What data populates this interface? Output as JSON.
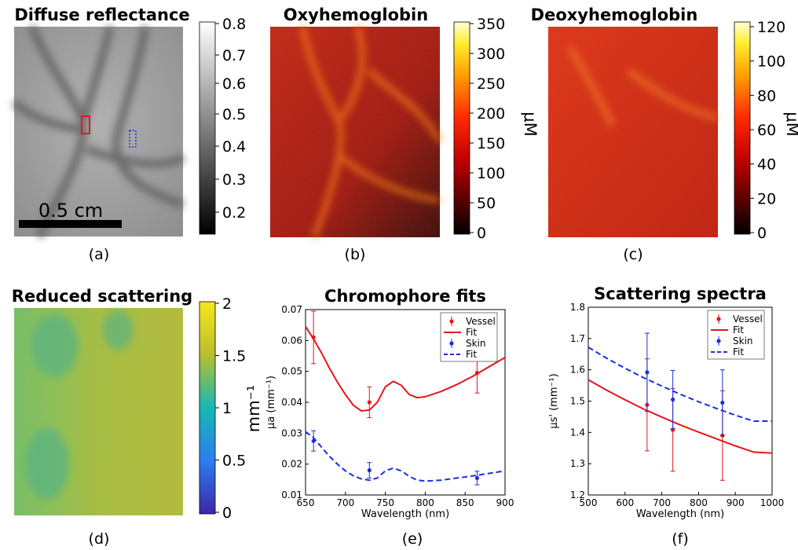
{
  "panels": {
    "a": {
      "title": "Diffuse reflectance",
      "caption": "(a)",
      "scalebar_label": "0.5 cm",
      "colorbar_ticks": [
        "0.8",
        "0.7",
        "0.6",
        "0.5",
        "0.4",
        "0.3",
        "0.2"
      ]
    },
    "b": {
      "title": "Oxyhemoglobin",
      "caption": "(b)",
      "unit": "μM",
      "colorbar_ticks": [
        "350",
        "300",
        "250",
        "200",
        "150",
        "100",
        "50",
        "0"
      ]
    },
    "c": {
      "title": "Deoxyhemoglobin",
      "caption": "(c)",
      "unit": "μM",
      "colorbar_ticks": [
        "120",
        "100",
        "80",
        "60",
        "40",
        "20",
        "0"
      ]
    },
    "d": {
      "title": "Reduced scattering",
      "caption": "(d)",
      "unit": "mm⁻¹",
      "colorbar_ticks": [
        "2",
        "1.5",
        "1",
        "0.5",
        "0"
      ]
    },
    "e": {
      "caption": "(e)"
    },
    "f": {
      "caption": "(f)"
    }
  },
  "chart_data": [
    {
      "type": "line",
      "title": "Chromophore fits",
      "xlabel": "Wavelength (nm)",
      "ylabel": "μa (mm⁻¹)",
      "xlim": [
        650,
        900
      ],
      "ylim": [
        0.01,
        0.07
      ],
      "x_ticks": [
        "650",
        "700",
        "750",
        "800",
        "850",
        "900"
      ],
      "y_ticks": [
        "0.01",
        "0.02",
        "0.03",
        "0.04",
        "0.05",
        "0.06",
        "0.07"
      ],
      "legend": [
        "Vessel",
        "Fit",
        "Skin",
        "Fit"
      ],
      "legend_position": "top-right",
      "series": [
        {
          "name": "Vessel",
          "kind": "errorbar",
          "color": "#e8141a",
          "x": [
            660,
            730,
            865
          ],
          "y": [
            0.061,
            0.04,
            0.0495
          ],
          "err": [
            0.0085,
            0.005,
            0.0065
          ]
        },
        {
          "name": "Fit",
          "kind": "line",
          "color": "#e8141a",
          "x": [
            650,
            660,
            670,
            680,
            690,
            700,
            710,
            720,
            730,
            740,
            750,
            760,
            770,
            780,
            790,
            800,
            820,
            840,
            860,
            880,
            900
          ],
          "y": [
            0.0645,
            0.0605,
            0.056,
            0.051,
            0.0465,
            0.0425,
            0.039,
            0.0372,
            0.0375,
            0.04,
            0.045,
            0.0468,
            0.0455,
            0.0425,
            0.0415,
            0.0418,
            0.0435,
            0.0458,
            0.0485,
            0.0515,
            0.0545
          ]
        },
        {
          "name": "Skin",
          "kind": "errorbar",
          "color": "#1a2ee0",
          "x": [
            660,
            730,
            865
          ],
          "y": [
            0.0275,
            0.018,
            0.0155
          ],
          "err": [
            0.0033,
            0.0025,
            0.0022
          ]
        },
        {
          "name": "Fit",
          "kind": "dashed",
          "color": "#1a2ee0",
          "x": [
            650,
            660,
            670,
            680,
            690,
            700,
            710,
            720,
            730,
            740,
            750,
            760,
            770,
            780,
            790,
            800,
            820,
            840,
            860,
            880,
            900
          ],
          "y": [
            0.0305,
            0.0285,
            0.0255,
            0.0225,
            0.02,
            0.0178,
            0.0162,
            0.0152,
            0.0148,
            0.0155,
            0.0178,
            0.0187,
            0.0178,
            0.016,
            0.0148,
            0.0145,
            0.0148,
            0.0155,
            0.0162,
            0.017,
            0.0178
          ]
        }
      ]
    },
    {
      "type": "line",
      "title": "Scattering spectra",
      "xlabel": "Wavelength (nm)",
      "ylabel": "μs' (mm⁻¹)",
      "xlim": [
        500,
        1000
      ],
      "ylim": [
        1.2,
        1.8
      ],
      "x_ticks": [
        "500",
        "600",
        "700",
        "800",
        "900",
        "1000"
      ],
      "y_ticks": [
        "1.2",
        "1.3",
        "1.4",
        "1.5",
        "1.6",
        "1.7",
        "1.8"
      ],
      "legend": [
        "Vessel",
        "Fit",
        "Skin",
        "Fit"
      ],
      "legend_position": "top-right",
      "series": [
        {
          "name": "Vessel",
          "kind": "errorbar",
          "color": "#e8141a",
          "x": [
            660,
            730,
            865
          ],
          "y": [
            1.488,
            1.408,
            1.39
          ],
          "err": [
            0.147,
            0.132,
            0.143
          ]
        },
        {
          "name": "Fit",
          "kind": "line",
          "color": "#e8141a",
          "x": [
            500,
            550,
            600,
            650,
            700,
            750,
            800,
            850,
            900,
            950,
            1000
          ],
          "y": [
            1.568,
            1.535,
            1.504,
            1.475,
            1.449,
            1.424,
            1.401,
            1.379,
            1.357,
            1.337,
            1.334
          ]
        },
        {
          "name": "Skin",
          "kind": "errorbar",
          "color": "#1a2ee0",
          "x": [
            660,
            730,
            865
          ],
          "y": [
            1.592,
            1.505,
            1.495
          ],
          "err": [
            0.125,
            0.093,
            0.105
          ]
        },
        {
          "name": "Fit",
          "kind": "dashed",
          "color": "#1a2ee0",
          "x": [
            500,
            550,
            600,
            650,
            700,
            750,
            800,
            850,
            900,
            950,
            1000
          ],
          "y": [
            1.672,
            1.637,
            1.605,
            1.575,
            1.548,
            1.522,
            1.498,
            1.476,
            1.455,
            1.436,
            1.436
          ]
        }
      ]
    }
  ],
  "colors": {
    "vessel": "#e8141a",
    "skin": "#1a2ee0"
  }
}
